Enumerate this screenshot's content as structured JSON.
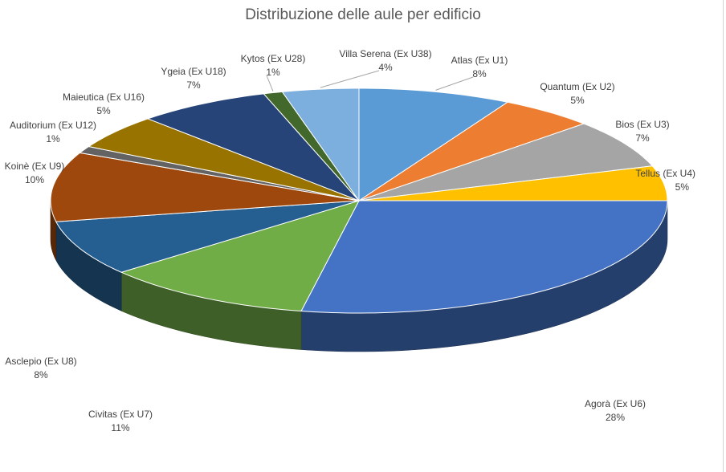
{
  "chart_data": {
    "type": "pie",
    "title": "Distribuzione delle aule per edificio",
    "slices": [
      {
        "name": "Atlas (Ex U1)",
        "label": "8%",
        "value": 8,
        "color": "#5b9bd5"
      },
      {
        "name": "Quantum (Ex U2)",
        "label": "5%",
        "value": 5,
        "color": "#ed7d31"
      },
      {
        "name": "Bios (Ex U3)",
        "label": "7%",
        "value": 7,
        "color": "#a5a5a5"
      },
      {
        "name": "Tellus (Ex U4)",
        "label": "5%",
        "value": 5,
        "color": "#ffc000"
      },
      {
        "name": "Agorà (Ex U6)",
        "label": "28%",
        "value": 28,
        "color": "#4472c4"
      },
      {
        "name": "Civitas (Ex U7)",
        "label": "11%",
        "value": 11,
        "color": "#70ad47"
      },
      {
        "name": "Asclepio (Ex U8)",
        "label": "8%",
        "value": 8,
        "color": "#255e91"
      },
      {
        "name": "Koinè (Ex U9)",
        "label": "10%",
        "value": 10,
        "color": "#9e480e"
      },
      {
        "name": "Auditorium (Ex U12)",
        "label": "1%",
        "value": 1,
        "color": "#636363"
      },
      {
        "name": "Maieutica (Ex U16)",
        "label": "5%",
        "value": 5,
        "color": "#997300"
      },
      {
        "name": "Ygeia (Ex U18)",
        "label": "7%",
        "value": 7,
        "color": "#264478"
      },
      {
        "name": "Kytos (Ex U28)",
        "label": "1%",
        "value": 1,
        "color": "#43682b"
      },
      {
        "name": "Villa Serena (Ex U38)",
        "label": "4%",
        "value": 4,
        "color": "#7cafdd"
      }
    ],
    "start_position": "12 o'clock",
    "direction": "clockwise",
    "style": "3D pie"
  }
}
